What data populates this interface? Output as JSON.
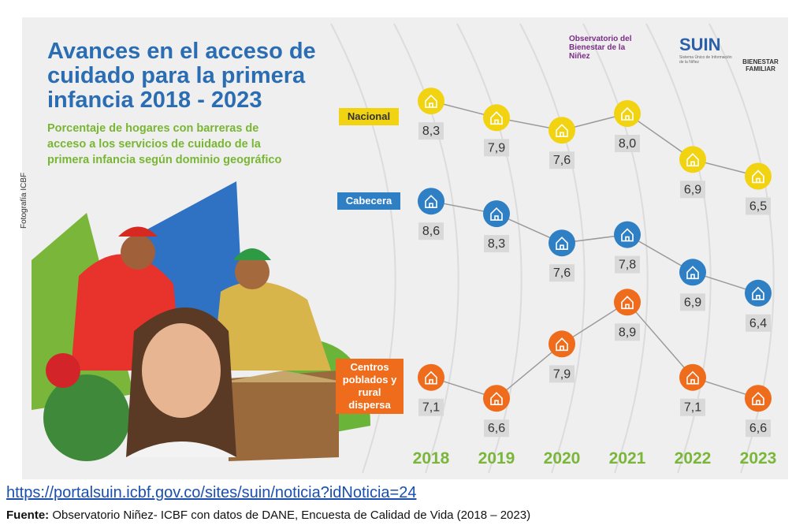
{
  "chart_data": {
    "type": "line",
    "title": "Avances en el acceso de cuidado para la primera infancia 2018 - 2023",
    "subtitle": "Porcentaje de hogares con barreras de acceso a los servicios de cuidado de la primera infancia según dominio geográfico",
    "categories": [
      "2018",
      "2019",
      "2020",
      "2021",
      "2022",
      "2023"
    ],
    "series": [
      {
        "name": "Nacional",
        "color": "#f2d312",
        "values": [
          8.3,
          7.9,
          7.6,
          8.0,
          6.9,
          6.5
        ],
        "value_labels": [
          "8,3",
          "7,9",
          "7,6",
          "8,0",
          "6,9",
          "6,5"
        ]
      },
      {
        "name": "Cabecera",
        "color": "#2f7fc4",
        "values": [
          8.6,
          8.3,
          7.6,
          7.8,
          6.9,
          6.4
        ],
        "value_labels": [
          "8,6",
          "8,3",
          "7,6",
          "7,8",
          "6,9",
          "6,4"
        ]
      },
      {
        "name": "Centros poblados y rural dispersa",
        "color": "#ee6c1c",
        "values": [
          7.1,
          6.6,
          7.9,
          8.9,
          7.1,
          6.6
        ],
        "value_labels": [
          "7,1",
          "6,6",
          "7,9",
          "8,9",
          "7,1",
          "6,6"
        ]
      }
    ]
  },
  "logos": {
    "observatorio": "Observatorio del Bienestar de la Niñez",
    "suin": "SUIN",
    "suin_sub": "Sistema Único de Información de la Niñez",
    "icbf": "BIENESTAR FAMILIAR"
  },
  "photo_credit": "Fotografía ICBF",
  "link": "https://portalsuin.icbf.gov.co/sites/suin/noticia?idNoticia=24",
  "source_label": "Fuente:",
  "source_text": "Observatorio Niñez- ICBF con datos de DANE, Encuesta de Calidad de Vida (2018 – 2023)"
}
